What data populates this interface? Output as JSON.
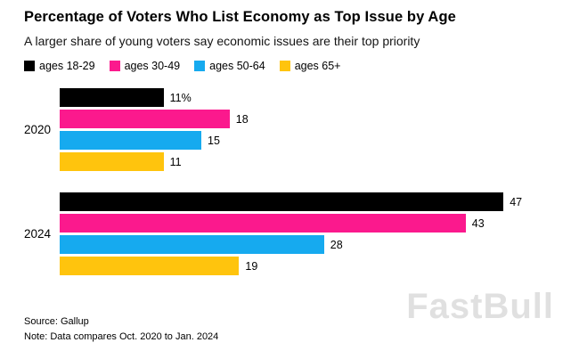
{
  "chart_data": {
    "type": "bar",
    "orientation": "horizontal",
    "title": "Percentage of Voters Who List Economy as Top Issue by Age",
    "subtitle": "A larger share of young voters say economic issues are their top priority",
    "categories": [
      "2020",
      "2024"
    ],
    "series": [
      {
        "name": "ages 18-29",
        "color": "#000000",
        "values": [
          11,
          47
        ],
        "labels": [
          "11%",
          "47"
        ]
      },
      {
        "name": "ages 30-49",
        "color": "#fb198d",
        "values": [
          18,
          43
        ],
        "labels": [
          "18",
          "43"
        ]
      },
      {
        "name": "ages 50-64",
        "color": "#16aaef",
        "values": [
          15,
          28
        ],
        "labels": [
          "15",
          "28"
        ]
      },
      {
        "name": "ages 65+",
        "color": "#ffc40d",
        "values": [
          11,
          19
        ],
        "labels": [
          "11",
          "19"
        ]
      }
    ],
    "xlim": [
      0,
      50
    ],
    "grid": false,
    "legend_position": "top",
    "source": "Source: Gallup",
    "note": "Note: Data compares Oct. 2020 to Jan. 2024"
  },
  "watermark": "FastBull"
}
